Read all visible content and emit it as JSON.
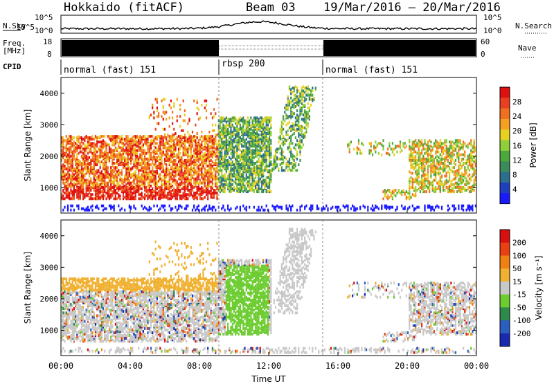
{
  "header": {
    "title": "Hokkaido (fitACF)",
    "beam": "Beam 03",
    "dates": "19/Mar/2016 – 20/Mar/2016"
  },
  "noise": {
    "left_label": "N.Sky",
    "right_label": "N.Search",
    "top_tick": "10^5",
    "bottom_tick": "10^0"
  },
  "freq": {
    "left_label_1": "Freq.",
    "left_label_2": "[MHz]",
    "left_ticks": [
      "18",
      "8"
    ],
    "right_ticks": [
      "60",
      "0"
    ],
    "right_label": "Nave"
  },
  "cpid": {
    "label": "CPID",
    "segments": [
      {
        "name": "normal (fast) 151",
        "start_hour": 0,
        "end_hour": 9
      },
      {
        "name": "rbsp 200",
        "start_hour": 9,
        "end_hour": 15
      },
      {
        "name": "normal (fast) 151",
        "start_hour": 15,
        "end_hour": 24
      }
    ]
  },
  "chart_data": [
    {
      "type": "heatmap",
      "title": "Power",
      "ylabel": "Slant Range [km]",
      "ylim": [
        200,
        4500
      ],
      "yticks": [
        1000,
        2000,
        3000,
        4000
      ],
      "xlim_hours": [
        0,
        24
      ],
      "colorbar_label": "Power [dB]",
      "colorbar_ticks": [
        "28",
        "24",
        "20",
        "16",
        "12",
        "8",
        "4"
      ],
      "colors": [
        "#1a1aff",
        "#1f3fbf",
        "#2c6e8e",
        "#3d8a5a",
        "#4ca83c",
        "#8fcf3a",
        "#e8d020",
        "#f5a020",
        "#f07020",
        "#e84020",
        "#e01010"
      ],
      "range_boundaries_hours": [
        9,
        15
      ]
    },
    {
      "type": "heatmap",
      "title": "Velocity",
      "ylabel": "Slant Range [km]",
      "ylim": [
        200,
        4500
      ],
      "yticks": [
        1000,
        2000,
        3000,
        4000
      ],
      "xlim_hours": [
        0,
        24
      ],
      "xlabel": "Time UT",
      "xticks": [
        "00:00",
        "04:00",
        "08:00",
        "12:00",
        "16:00",
        "20:00",
        "00:00"
      ],
      "colorbar_label": "Velocity [m s⁻¹]",
      "colorbar_ticks": [
        "200",
        "100",
        "50",
        "15",
        "-15",
        "-50",
        "-100",
        "-200"
      ],
      "colors": [
        "#1a2ab0",
        "#2a5fbf",
        "#2e8a4a",
        "#6ccc30",
        "#c8c8c8",
        "#f0b030",
        "#f08010",
        "#e84010",
        "#d81010"
      ],
      "range_boundaries_hours": [
        9,
        15
      ]
    }
  ]
}
